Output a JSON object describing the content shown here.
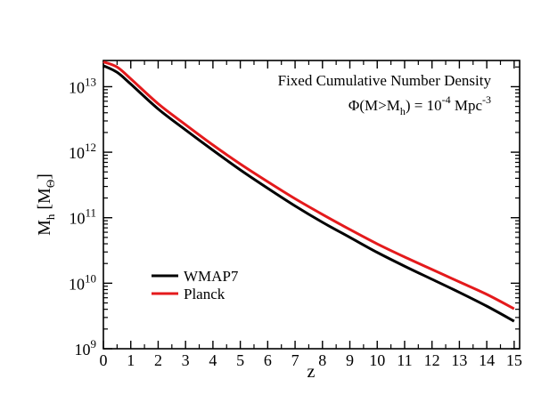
{
  "chart_data": {
    "type": "line",
    "xlabel": "z",
    "ylabel": "M_h [M_Θ]",
    "xlim": [
      0,
      15.2
    ],
    "ylim_log10": [
      9,
      13.4
    ],
    "yscale": "log",
    "x_ticks": [
      0,
      1,
      2,
      3,
      4,
      5,
      6,
      7,
      8,
      9,
      10,
      11,
      12,
      13,
      14,
      15
    ],
    "y_ticks": [
      {
        "base": "10",
        "exp": "9",
        "log10": 9
      },
      {
        "base": "10",
        "exp": "10",
        "log10": 10
      },
      {
        "base": "10",
        "exp": "11",
        "log10": 11
      },
      {
        "base": "10",
        "exp": "12",
        "log10": 12
      },
      {
        "base": "10",
        "exp": "13",
        "log10": 13
      }
    ],
    "annotation_line1": "Fixed Cumulative Number Density",
    "annotation_line2": {
      "phi": "Φ(M>M",
      "sub": "h",
      "mid": ") = 10",
      "exp": "-4",
      "unit": " Mpc",
      "unit_exp": "-3"
    },
    "legend_position": "lower-left",
    "series": [
      {
        "name": "WMAP7",
        "color": "#000000",
        "x": [
          0,
          0.5,
          1,
          2,
          3,
          4,
          5,
          6,
          7,
          8,
          9,
          10,
          11,
          12,
          13,
          14,
          15
        ],
        "log10_y": [
          13.32,
          13.22,
          13.04,
          12.66,
          12.34,
          12.03,
          11.73,
          11.45,
          11.18,
          10.93,
          10.7,
          10.47,
          10.26,
          10.06,
          9.86,
          9.65,
          9.42
        ]
      },
      {
        "name": "Planck",
        "color": "#e41a1c",
        "x": [
          0,
          0.5,
          1,
          2,
          3,
          4,
          5,
          6,
          7,
          8,
          9,
          10,
          11,
          12,
          13,
          14,
          15
        ],
        "log10_y": [
          13.38,
          13.3,
          13.12,
          12.74,
          12.42,
          12.11,
          11.82,
          11.55,
          11.29,
          11.05,
          10.82,
          10.6,
          10.4,
          10.21,
          10.02,
          9.83,
          9.61
        ]
      }
    ]
  }
}
